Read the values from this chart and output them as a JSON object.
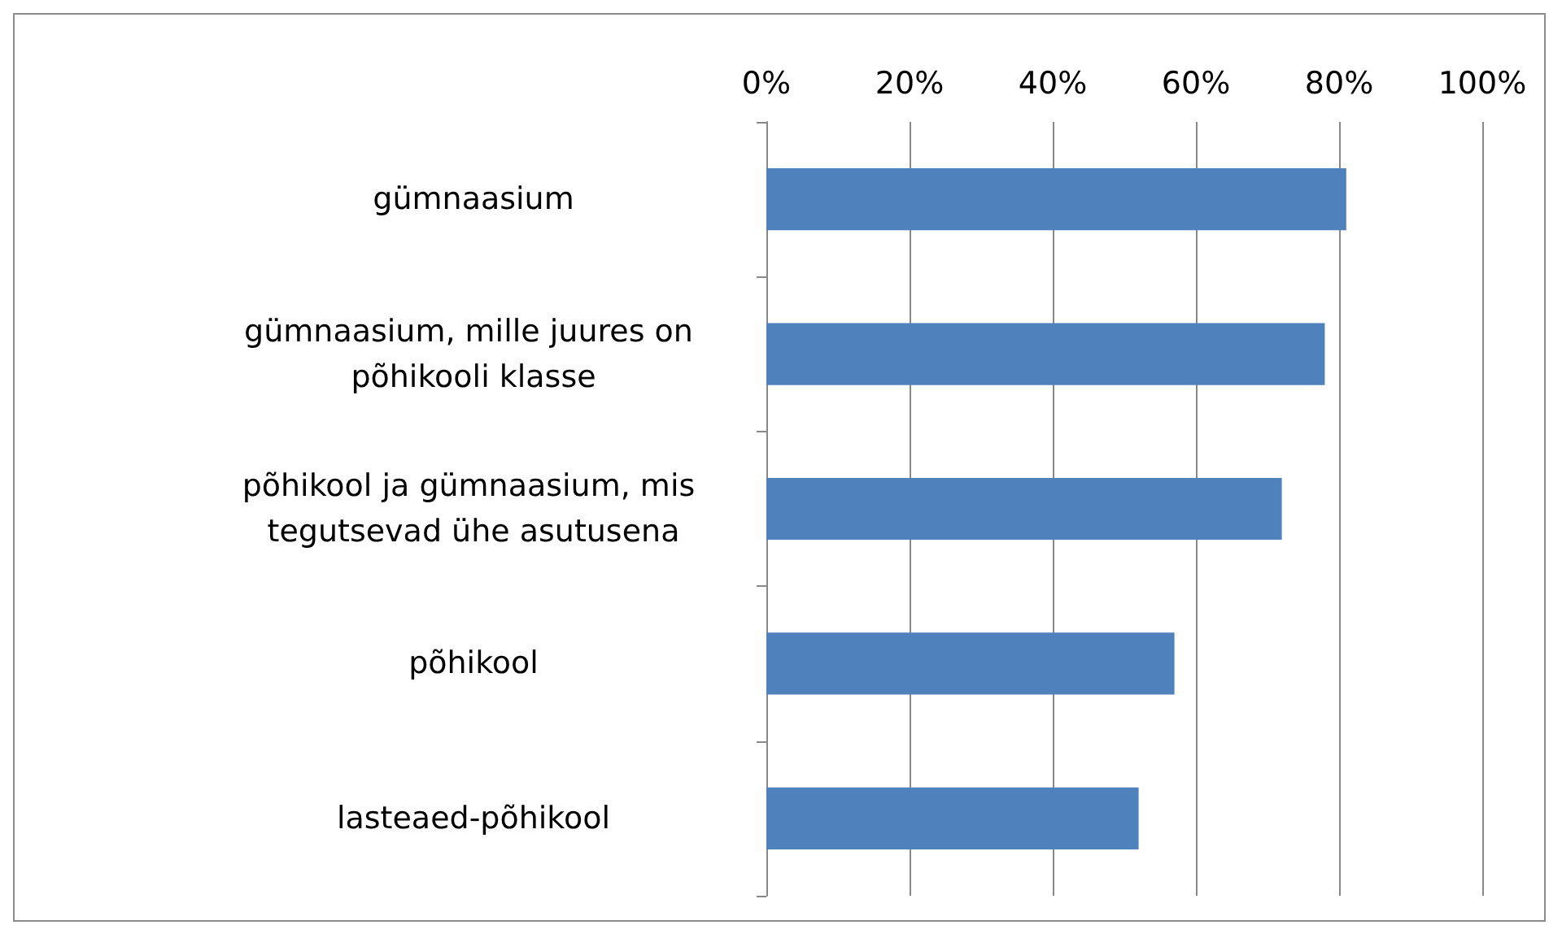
{
  "chart_data": {
    "type": "bar",
    "orientation": "horizontal",
    "categories": [
      "gümnaasium",
      "gümnaasium, mille juures on põhikooli klasse",
      "põhikool ja gümnaasium, mis tegutsevad ühe asutusena",
      "põhikool",
      "lasteaed-põhikool"
    ],
    "values": [
      81,
      78,
      72,
      57,
      52
    ],
    "color": "#4f81bd",
    "xlim": [
      0,
      100
    ],
    "xticks": [
      {
        "value": 0,
        "label": "0%"
      },
      {
        "value": 20,
        "label": "20%"
      },
      {
        "value": 40,
        "label": "40%"
      },
      {
        "value": 60,
        "label": "60%"
      },
      {
        "value": 80,
        "label": "80%"
      },
      {
        "value": 100,
        "label": "100%"
      }
    ],
    "grid": "x"
  }
}
